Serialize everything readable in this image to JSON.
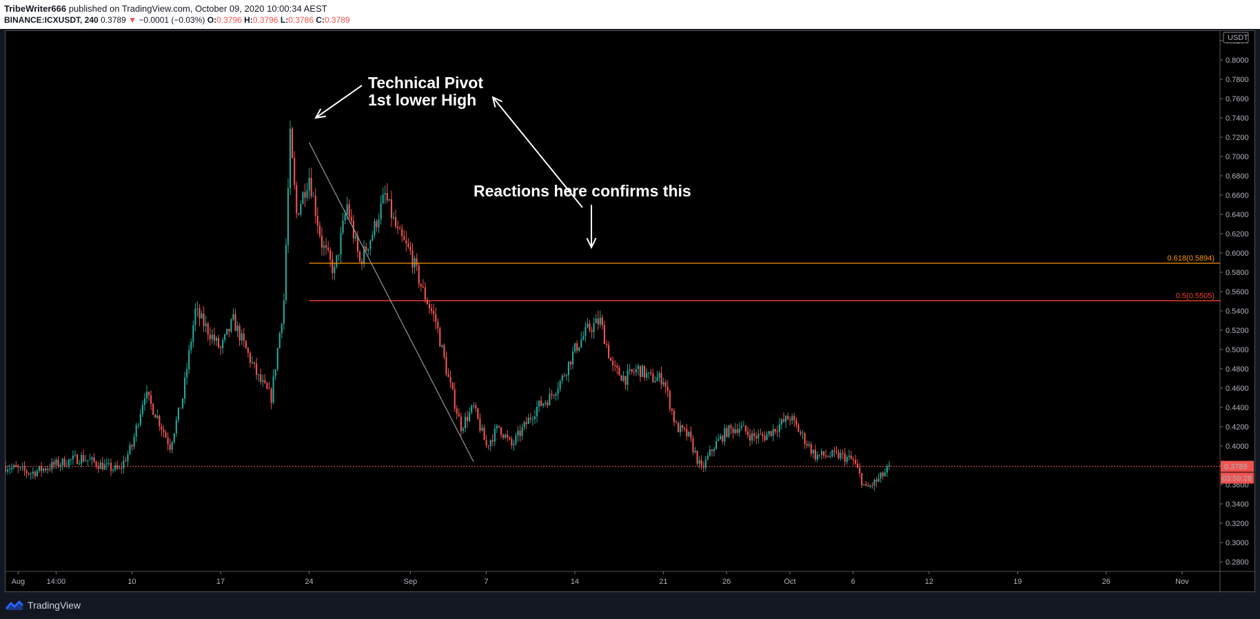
{
  "header": {
    "author": "TribeWriter666",
    "published": "published on TradingView.com, October 09, 2020 10:00:34 AEST",
    "symbol": "BINANCE:ICXUSDT, 240",
    "last": "0.3789",
    "change_arrow": "▼",
    "change": "−0.0001 (−0.03%)",
    "o_label": "O:",
    "o": "0.3796",
    "h_label": "H:",
    "h": "0.3796",
    "l_label": "L:",
    "l": "0.3786",
    "c_label": "C:",
    "c": "0.3789"
  },
  "footer": {
    "brand": "TradingView",
    "logo_icon": "tradingview-logo-icon"
  },
  "colors": {
    "up": "#26a69a",
    "down": "#ef5350",
    "fib_618": "#ff9800",
    "fib_05": "#f44336",
    "background": "#000000"
  },
  "chart_data": {
    "type": "candlestick",
    "symbol": "ICXUSDT",
    "exchange": "BINANCE",
    "timeframe": "240",
    "currency_label": "USDT",
    "ylim": [
      0.27,
      0.83
    ],
    "y_ticks": [
      "0.8200",
      "0.8000",
      "0.7800",
      "0.7600",
      "0.7400",
      "0.7200",
      "0.7000",
      "0.6800",
      "0.6600",
      "0.6400",
      "0.6200",
      "0.6000",
      "0.5800",
      "0.5600",
      "0.5400",
      "0.5200",
      "0.5000",
      "0.4800",
      "0.4600",
      "0.4400",
      "0.4200",
      "0.4000",
      "0.3800",
      "0.3600",
      "0.3400",
      "0.3200",
      "0.3000",
      "0.2800"
    ],
    "x_range": [
      "2020-07-31",
      "2020-11-04"
    ],
    "x_ticks": [
      {
        "label": "Aug",
        "date": "2020-08-01"
      },
      {
        "label": "14:00",
        "date": "2020-08-04"
      },
      {
        "label": "10",
        "date": "2020-08-10"
      },
      {
        "label": "17",
        "date": "2020-08-17"
      },
      {
        "label": "24",
        "date": "2020-08-24"
      },
      {
        "label": "Sep",
        "date": "2020-09-01"
      },
      {
        "label": "7",
        "date": "2020-09-07"
      },
      {
        "label": "14",
        "date": "2020-09-14"
      },
      {
        "label": "21",
        "date": "2020-09-21"
      },
      {
        "label": "26",
        "date": "2020-09-26"
      },
      {
        "label": "Oct",
        "date": "2020-10-01"
      },
      {
        "label": "6",
        "date": "2020-10-06"
      },
      {
        "label": "12",
        "date": "2020-10-12"
      },
      {
        "label": "19",
        "date": "2020-10-19"
      },
      {
        "label": "26",
        "date": "2020-10-26"
      },
      {
        "label": "Nov",
        "date": "2020-11-01"
      }
    ],
    "price_path": [
      [
        "2020-07-31",
        0.379
      ],
      [
        "2020-08-02",
        0.372
      ],
      [
        "2020-08-04",
        0.381
      ],
      [
        "2020-08-06",
        0.388
      ],
      [
        "2020-08-08",
        0.378
      ],
      [
        "2020-08-09",
        0.375
      ],
      [
        "2020-08-10",
        0.4
      ],
      [
        "2020-08-11",
        0.455
      ],
      [
        "2020-08-12",
        0.43
      ],
      [
        "2020-08-13",
        0.4
      ],
      [
        "2020-08-14",
        0.45
      ],
      [
        "2020-08-15",
        0.54
      ],
      [
        "2020-08-16",
        0.52
      ],
      [
        "2020-08-17",
        0.5
      ],
      [
        "2020-08-18",
        0.53
      ],
      [
        "2020-08-19",
        0.5
      ],
      [
        "2020-08-20",
        0.47
      ],
      [
        "2020-08-21",
        0.45
      ],
      [
        "2020-08-22",
        0.55
      ],
      [
        "2020-08-22T12:00",
        0.72
      ],
      [
        "2020-08-23",
        0.64
      ],
      [
        "2020-08-24",
        0.68
      ],
      [
        "2020-08-25",
        0.61
      ],
      [
        "2020-08-26",
        0.58
      ],
      [
        "2020-08-27",
        0.65
      ],
      [
        "2020-08-28",
        0.59
      ],
      [
        "2020-08-29",
        0.62
      ],
      [
        "2020-08-30",
        0.66
      ],
      [
        "2020-08-31",
        0.62
      ],
      [
        "2020-09-01",
        0.6
      ],
      [
        "2020-09-02",
        0.56
      ],
      [
        "2020-09-03",
        0.53
      ],
      [
        "2020-09-04",
        0.47
      ],
      [
        "2020-09-05",
        0.42
      ],
      [
        "2020-09-06",
        0.44
      ],
      [
        "2020-09-07",
        0.4
      ],
      [
        "2020-09-08",
        0.42
      ],
      [
        "2020-09-09",
        0.4
      ],
      [
        "2020-09-10",
        0.42
      ],
      [
        "2020-09-11",
        0.44
      ],
      [
        "2020-09-12",
        0.45
      ],
      [
        "2020-09-13",
        0.47
      ],
      [
        "2020-09-14",
        0.5
      ],
      [
        "2020-09-15",
        0.52
      ],
      [
        "2020-09-16",
        0.53
      ],
      [
        "2020-09-17",
        0.48
      ],
      [
        "2020-09-18",
        0.47
      ],
      [
        "2020-09-19",
        0.48
      ],
      [
        "2020-09-20",
        0.47
      ],
      [
        "2020-09-21",
        0.47
      ],
      [
        "2020-09-22",
        0.42
      ],
      [
        "2020-09-23",
        0.41
      ],
      [
        "2020-09-24",
        0.375
      ],
      [
        "2020-09-25",
        0.4
      ],
      [
        "2020-09-26",
        0.415
      ],
      [
        "2020-09-27",
        0.42
      ],
      [
        "2020-09-28",
        0.41
      ],
      [
        "2020-09-29",
        0.41
      ],
      [
        "2020-09-30",
        0.42
      ],
      [
        "2020-10-01",
        0.43
      ],
      [
        "2020-10-02",
        0.41
      ],
      [
        "2020-10-03",
        0.39
      ],
      [
        "2020-10-04",
        0.39
      ],
      [
        "2020-10-05",
        0.39
      ],
      [
        "2020-10-06",
        0.385
      ],
      [
        "2020-10-07",
        0.355
      ],
      [
        "2020-10-08",
        0.365
      ],
      [
        "2020-10-09",
        0.379
      ]
    ],
    "trendline": [
      {
        "date": "2020-08-24",
        "price": 0.7145
      },
      {
        "date": "2020-09-06",
        "price": 0.3835
      }
    ],
    "fib_levels": [
      {
        "label": "0.618(0.5894)",
        "price": 0.5894,
        "start_date": "2020-08-24"
      },
      {
        "label": "0.5(0.5505)",
        "price": 0.5505,
        "start_date": "2020-08-24"
      }
    ],
    "last_price": {
      "value": 0.3789,
      "label": "0.3789",
      "countdown": "03:59:28"
    },
    "annotations": [
      {
        "lines": [
          "Technical Pivot",
          "1st lower High"
        ]
      },
      {
        "lines": [
          "Reactions here confirms this"
        ]
      }
    ]
  }
}
